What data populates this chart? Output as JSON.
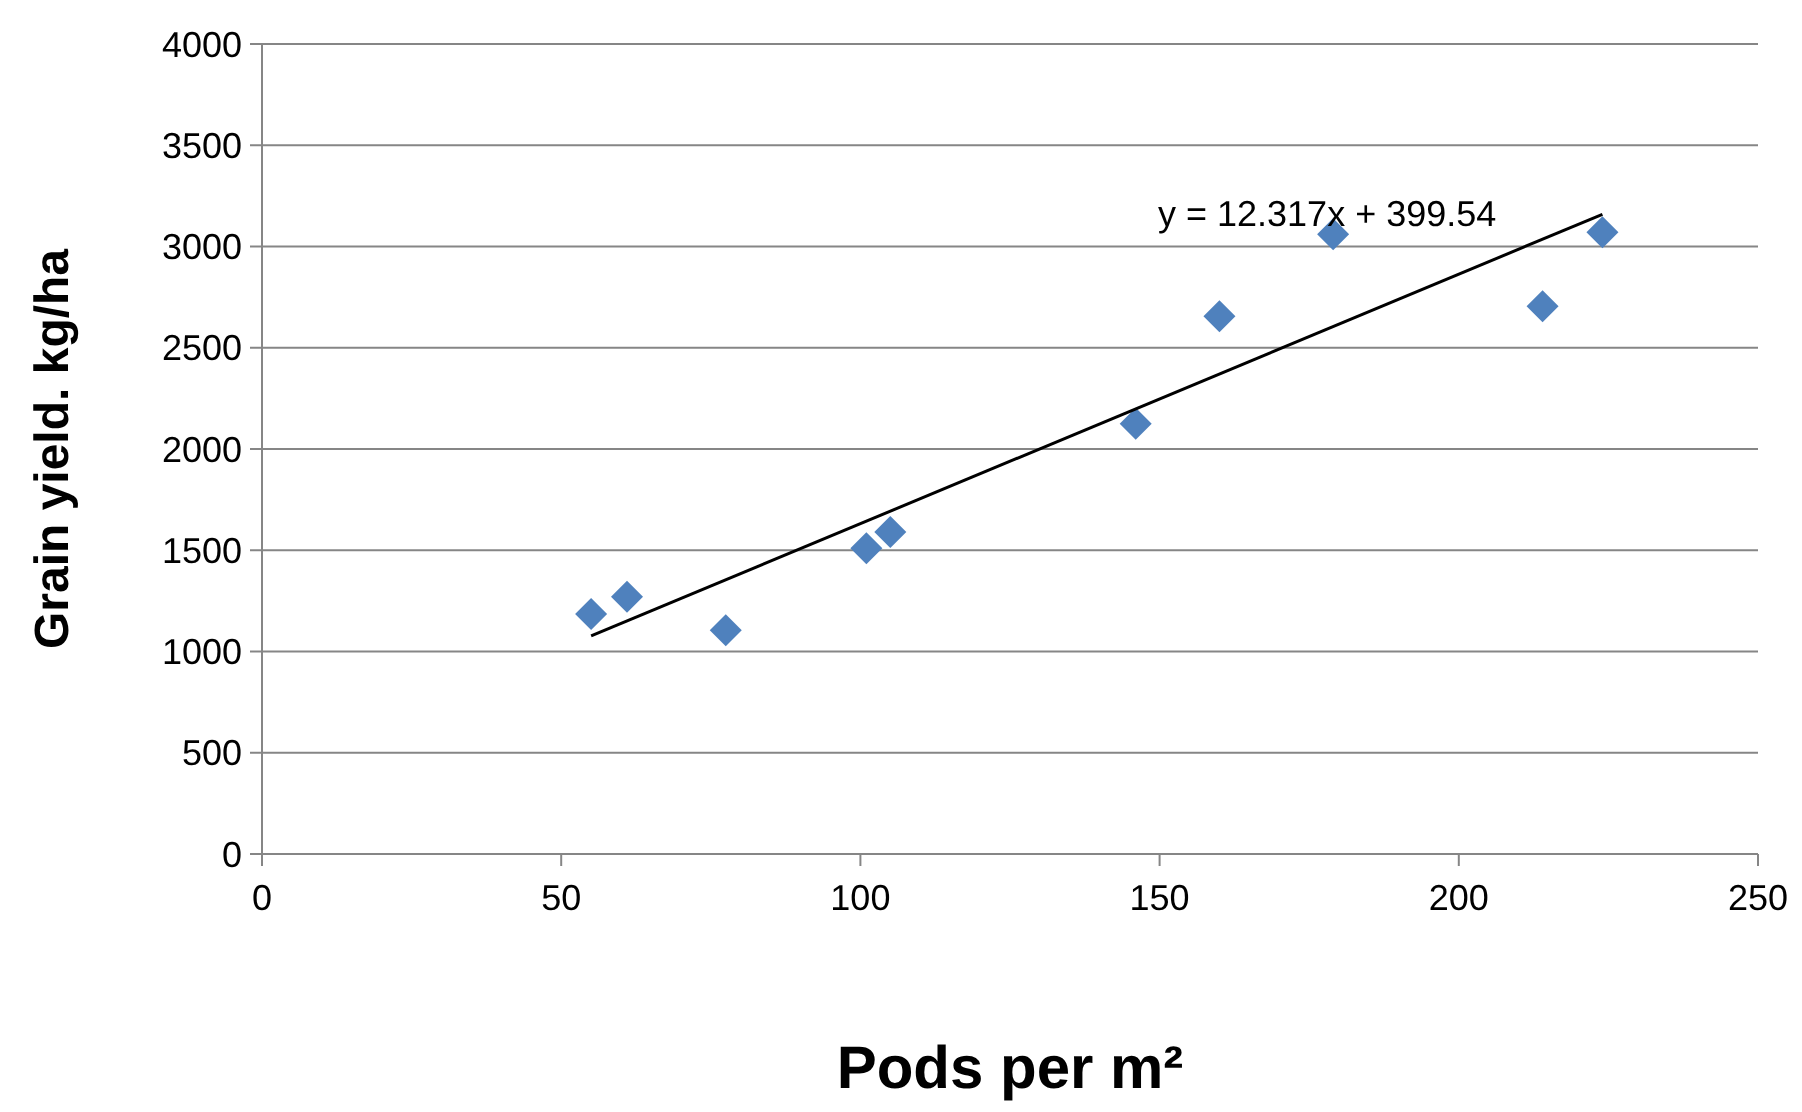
{
  "chart_data": {
    "type": "scatter",
    "xlabel": "Pods per m²",
    "ylabel": "Grain yield. kg/ha",
    "xlim": [
      0,
      250
    ],
    "xticks": [
      0,
      50,
      100,
      150,
      200,
      250
    ],
    "ylim": [
      0,
      4000
    ],
    "yticks": [
      0,
      500,
      1000,
      1500,
      2000,
      2500,
      3000,
      3500,
      4000
    ],
    "grid": "y",
    "marker": "diamond",
    "annotations": [
      {
        "text": "y = 12.317x + 399.54",
        "x": 178,
        "y": 3100
      }
    ],
    "series": [
      {
        "color": "#4f81bd",
        "x": [
          55,
          61,
          77.5,
          101,
          105,
          146,
          160,
          179,
          214,
          224
        ],
        "values": [
          1185,
          1270,
          1105,
          1510,
          1590,
          2125,
          2655,
          3060,
          2705,
          3070
        ]
      },
      {
        "type": "line",
        "color": "#000000",
        "marker": "none",
        "x": [
          55,
          224
        ],
        "values": [
          1077,
          3159
        ]
      }
    ]
  }
}
